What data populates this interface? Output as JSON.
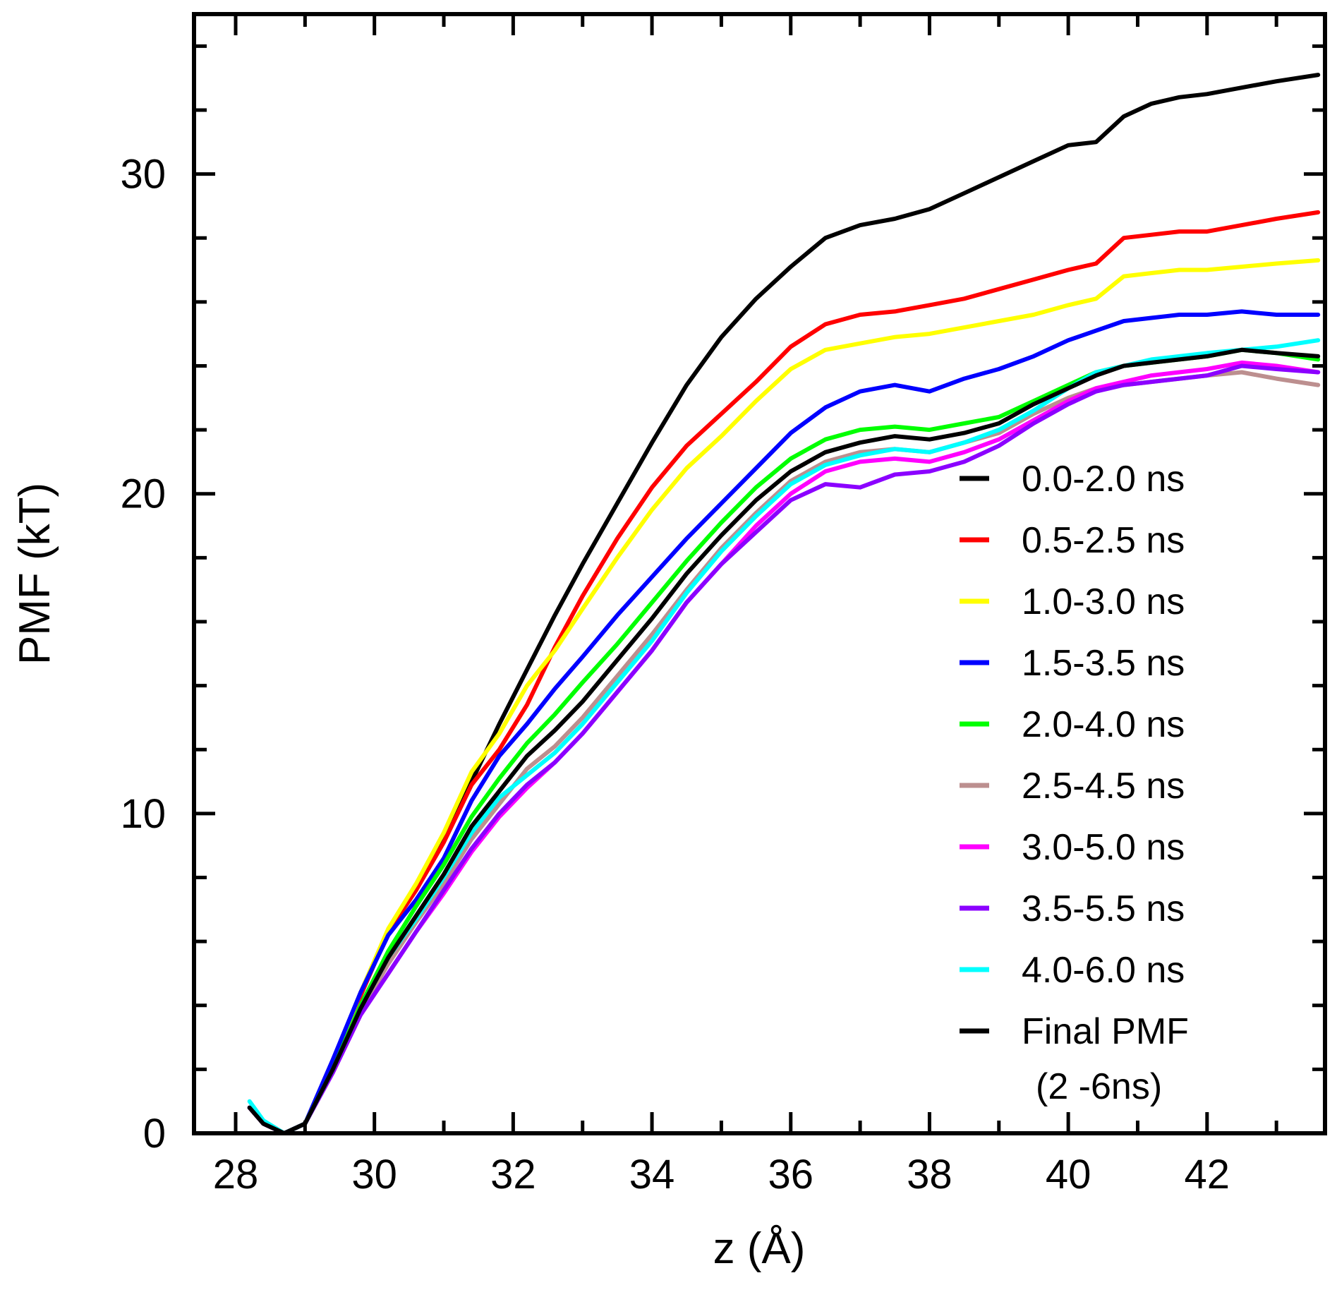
{
  "chart_data": {
    "type": "line",
    "xlabel": "z (Å)",
    "ylabel": "PMF (kT)",
    "xlim": [
      27.4,
      43.7
    ],
    "ylim": [
      0,
      35
    ],
    "x_ticks": [
      28,
      30,
      32,
      34,
      36,
      38,
      40,
      42
    ],
    "x_tick_labels": [
      "28",
      "30",
      "32",
      "34",
      "36",
      "38",
      "40",
      "42"
    ],
    "y_ticks": [
      0,
      10,
      20,
      30
    ],
    "y_tick_labels": [
      "0",
      "10",
      "20",
      "30"
    ],
    "legend_position": "right",
    "x": [
      28.2,
      28.4,
      28.7,
      29.0,
      29.4,
      29.8,
      30.2,
      30.6,
      31.0,
      31.4,
      31.8,
      32.2,
      32.6,
      33.0,
      33.5,
      34.0,
      34.5,
      35.0,
      35.5,
      36.0,
      36.5,
      37.0,
      37.5,
      38.0,
      38.5,
      39.0,
      39.5,
      40.0,
      40.4,
      40.8,
      41.2,
      41.6,
      42.0,
      42.5,
      43.0,
      43.6
    ],
    "series": [
      {
        "name": "0.0-2.0 ns",
        "color": "#000000",
        "values": [
          0.8,
          0.3,
          0.0,
          0.3,
          2.2,
          4.3,
          6.3,
          7.7,
          9.2,
          11.0,
          12.8,
          14.5,
          16.2,
          17.8,
          19.7,
          21.6,
          23.4,
          24.9,
          26.1,
          27.1,
          28.0,
          28.4,
          28.6,
          28.9,
          29.4,
          29.9,
          30.4,
          30.9,
          31.0,
          31.8,
          32.2,
          32.4,
          32.5,
          32.7,
          32.9,
          33.1
        ]
      },
      {
        "name": "0.5-2.5 ns",
        "color": "#ff0000",
        "values": [
          0.8,
          0.3,
          0.0,
          0.3,
          2.2,
          4.3,
          6.3,
          7.6,
          9.1,
          10.9,
          12.0,
          13.4,
          15.2,
          16.8,
          18.6,
          20.2,
          21.5,
          22.5,
          23.5,
          24.6,
          25.3,
          25.6,
          25.7,
          25.9,
          26.1,
          26.4,
          26.7,
          27.0,
          27.2,
          28.0,
          28.1,
          28.2,
          28.2,
          28.4,
          28.6,
          28.8
        ]
      },
      {
        "name": "1.0-3.0 ns",
        "color": "#ffff00",
        "values": [
          0.8,
          0.3,
          0.0,
          0.3,
          2.2,
          4.4,
          6.4,
          7.8,
          9.4,
          11.3,
          12.5,
          14.0,
          15.1,
          16.4,
          18.0,
          19.5,
          20.8,
          21.8,
          22.9,
          23.9,
          24.5,
          24.7,
          24.9,
          25.0,
          25.2,
          25.4,
          25.6,
          25.9,
          26.1,
          26.8,
          26.9,
          27.0,
          27.0,
          27.1,
          27.2,
          27.3
        ]
      },
      {
        "name": "1.5-3.5 ns",
        "color": "#0000ff",
        "values": [
          0.8,
          0.3,
          0.0,
          0.3,
          2.3,
          4.4,
          6.2,
          7.3,
          8.6,
          10.4,
          11.8,
          12.8,
          13.9,
          14.9,
          16.2,
          17.4,
          18.6,
          19.7,
          20.8,
          21.9,
          22.7,
          23.2,
          23.4,
          23.2,
          23.6,
          23.9,
          24.3,
          24.8,
          25.1,
          25.4,
          25.5,
          25.6,
          25.6,
          25.7,
          25.6,
          25.6
        ]
      },
      {
        "name": "2.0-4.0 ns",
        "color": "#00ff00",
        "values": [
          0.8,
          0.3,
          0.0,
          0.3,
          2.0,
          4.0,
          5.7,
          7.1,
          8.4,
          9.9,
          11.1,
          12.2,
          13.1,
          14.1,
          15.3,
          16.6,
          17.9,
          19.1,
          20.2,
          21.1,
          21.7,
          22.0,
          22.1,
          22.0,
          22.2,
          22.4,
          22.9,
          23.4,
          23.8,
          24.0,
          24.1,
          24.2,
          24.3,
          24.5,
          24.4,
          24.2
        ]
      },
      {
        "name": "2.5-4.5 ns",
        "color": "#bc8f8f",
        "values": [
          0.8,
          0.3,
          0.0,
          0.3,
          1.9,
          3.8,
          5.3,
          6.6,
          7.8,
          9.2,
          10.3,
          11.4,
          12.1,
          13.0,
          14.3,
          15.6,
          17.0,
          18.3,
          19.4,
          20.4,
          21.0,
          21.3,
          21.4,
          21.3,
          21.6,
          21.9,
          22.5,
          23.0,
          23.3,
          23.4,
          23.5,
          23.6,
          23.7,
          23.8,
          23.6,
          23.4
        ]
      },
      {
        "name": "3.0-5.0 ns",
        "color": "#ff00ff",
        "values": [
          0.8,
          0.3,
          0.0,
          0.3,
          1.9,
          3.7,
          5.0,
          6.3,
          7.5,
          8.8,
          9.9,
          10.8,
          11.6,
          12.5,
          13.8,
          15.1,
          16.6,
          17.8,
          19.0,
          20.0,
          20.7,
          21.0,
          21.1,
          21.0,
          21.3,
          21.7,
          22.3,
          22.9,
          23.3,
          23.5,
          23.7,
          23.8,
          23.9,
          24.1,
          24.0,
          23.8
        ]
      },
      {
        "name": "3.5-5.5 ns",
        "color": "#8b00ff",
        "values": [
          0.8,
          0.3,
          0.0,
          0.3,
          1.9,
          3.7,
          5.0,
          6.3,
          7.6,
          8.9,
          10.0,
          10.9,
          11.6,
          12.5,
          13.8,
          15.1,
          16.6,
          17.8,
          18.8,
          19.8,
          20.3,
          20.2,
          20.6,
          20.7,
          21.0,
          21.5,
          22.2,
          22.8,
          23.2,
          23.4,
          23.5,
          23.6,
          23.7,
          24.0,
          23.9,
          23.8
        ]
      },
      {
        "name": "4.0-6.0 ns",
        "color": "#00ffff",
        "values": [
          1.0,
          0.4,
          0.0,
          0.3,
          2.0,
          3.9,
          5.5,
          6.7,
          8.0,
          9.4,
          10.5,
          11.2,
          11.9,
          12.8,
          14.1,
          15.4,
          16.9,
          18.2,
          19.3,
          20.3,
          20.9,
          21.2,
          21.4,
          21.3,
          21.6,
          22.0,
          22.6,
          23.3,
          23.8,
          24.0,
          24.2,
          24.3,
          24.4,
          24.5,
          24.6,
          24.8
        ]
      },
      {
        "name": "Final PMF\n(2 -6ns)",
        "color": "#000000",
        "values": [
          0.8,
          0.3,
          0.0,
          0.3,
          2.0,
          3.9,
          5.5,
          6.8,
          8.1,
          9.6,
          10.7,
          11.8,
          12.6,
          13.5,
          14.8,
          16.1,
          17.5,
          18.7,
          19.8,
          20.7,
          21.3,
          21.6,
          21.8,
          21.7,
          21.9,
          22.2,
          22.8,
          23.3,
          23.7,
          24.0,
          24.1,
          24.2,
          24.3,
          24.5,
          24.4,
          24.3
        ]
      }
    ]
  }
}
